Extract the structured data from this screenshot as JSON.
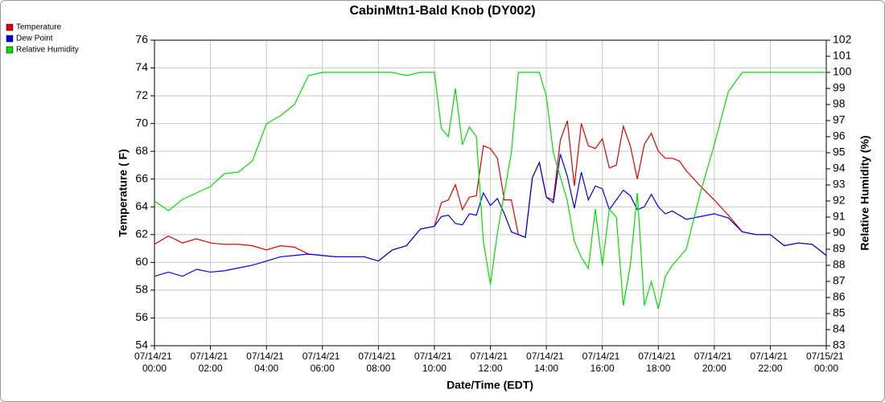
{
  "chart_data": {
    "type": "line",
    "title": "CabinMtn1-Bald Knob (DY002)",
    "x_label": "Date/Time (EDT)",
    "y_label": "Temperature ( F)",
    "y2_label": "Relative Humidity (%)",
    "grid": true,
    "legend": "top-left",
    "x": [
      "07/14/21 00:00",
      "07/14/21 00:30",
      "07/14/21 01:00",
      "07/14/21 01:30",
      "07/14/21 02:00",
      "07/14/21 02:30",
      "07/14/21 03:00",
      "07/14/21 03:30",
      "07/14/21 04:00",
      "07/14/21 04:30",
      "07/14/21 05:00",
      "07/14/21 05:30",
      "07/14/21 06:00",
      "07/14/21 06:30",
      "07/14/21 07:00",
      "07/14/21 07:30",
      "07/14/21 08:00",
      "07/14/21 08:30",
      "07/14/21 09:00",
      "07/14/21 09:30",
      "07/14/21 10:00",
      "07/14/21 10:15",
      "07/14/21 10:30",
      "07/14/21 10:45",
      "07/14/21 11:00",
      "07/14/21 11:15",
      "07/14/21 11:30",
      "07/14/21 11:45",
      "07/14/21 12:00",
      "07/14/21 12:15",
      "07/14/21 12:30",
      "07/14/21 12:45",
      "07/14/21 13:00",
      "07/14/21 13:15",
      "07/14/21 13:30",
      "07/14/21 13:45",
      "07/14/21 14:00",
      "07/14/21 14:15",
      "07/14/21 14:30",
      "07/14/21 14:45",
      "07/14/21 15:00",
      "07/14/21 15:15",
      "07/14/21 15:30",
      "07/14/21 15:45",
      "07/14/21 16:00",
      "07/14/21 16:15",
      "07/14/21 16:30",
      "07/14/21 16:45",
      "07/14/21 17:00",
      "07/14/21 17:15",
      "07/14/21 17:30",
      "07/14/21 17:45",
      "07/14/21 18:00",
      "07/14/21 18:15",
      "07/14/21 18:30",
      "07/14/21 18:45",
      "07/14/21 19:00",
      "07/14/21 19:30",
      "07/14/21 20:00",
      "07/14/21 20:30",
      "07/14/21 21:00",
      "07/14/21 21:30",
      "07/14/21 22:00",
      "07/14/21 22:30",
      "07/14/21 23:00",
      "07/14/21 23:30",
      "07/15/21 00:00"
    ],
    "xlim": [
      "07/14/21 00:00",
      "07/15/21 00:00"
    ],
    "xticks": [
      "07/14/21 00:00",
      "07/14/21 02:00",
      "07/14/21 04:00",
      "07/14/21 06:00",
      "07/14/21 08:00",
      "07/14/21 10:00",
      "07/14/21 12:00",
      "07/14/21 14:00",
      "07/14/21 16:00",
      "07/14/21 18:00",
      "07/14/21 20:00",
      "07/14/21 22:00",
      "07/15/21 00:00"
    ],
    "ylim": [
      54,
      76
    ],
    "yticks": [
      54,
      56,
      58,
      60,
      62,
      64,
      66,
      68,
      70,
      72,
      74,
      76
    ],
    "y2lim": [
      83,
      102
    ],
    "y2ticks": [
      83,
      84,
      85,
      86,
      87,
      88,
      89,
      90,
      91,
      92,
      93,
      94,
      95,
      96,
      97,
      98,
      99,
      100,
      101,
      102
    ],
    "series": [
      {
        "name": "Temperature",
        "color": "#e00000",
        "values": [
          61.3,
          61.9,
          61.4,
          61.7,
          61.4,
          61.3,
          61.3,
          61.2,
          60.9,
          61.2,
          61.1,
          60.6,
          60.5,
          60.4,
          60.4,
          60.4,
          60.1,
          60.9,
          61.2,
          62.4,
          62.6,
          64.3,
          64.5,
          65.6,
          63.8,
          64.7,
          64.8,
          68.4,
          68.2,
          67.5,
          64.5,
          64.5,
          62.0,
          61.8,
          66.1,
          67.2,
          64.7,
          64.5,
          68.8,
          70.2,
          65.5,
          70.0,
          68.4,
          68.2,
          68.9,
          66.8,
          67.0,
          69.8,
          68.4,
          66.0,
          68.5,
          69.3,
          68.0,
          67.5,
          67.5,
          67.3,
          66.6,
          65.5,
          64.5,
          63.4,
          62.2,
          62.0,
          62.0,
          61.2,
          61.4,
          61.3,
          60.5
        ]
      },
      {
        "name": "Dew Point",
        "color": "#0000e0",
        "values": [
          59.0,
          59.3,
          59.0,
          59.5,
          59.3,
          59.4,
          59.6,
          59.8,
          60.1,
          60.4,
          60.5,
          60.6,
          60.5,
          60.4,
          60.4,
          60.4,
          60.1,
          60.9,
          61.2,
          62.4,
          62.6,
          63.3,
          63.4,
          62.8,
          62.7,
          63.5,
          63.4,
          65.0,
          64.1,
          64.6,
          63.5,
          62.2,
          62.0,
          61.8,
          66.1,
          67.2,
          64.7,
          64.3,
          67.8,
          66.2,
          63.9,
          66.5,
          64.5,
          65.5,
          65.3,
          63.8,
          64.5,
          65.2,
          64.8,
          63.8,
          64.0,
          64.9,
          64.0,
          63.5,
          63.7,
          63.4,
          63.1,
          63.3,
          63.5,
          63.2,
          62.2,
          62.0,
          62.0,
          61.2,
          61.4,
          61.3,
          60.5
        ]
      },
      {
        "name": "Relative Humidity",
        "color": "#00e000",
        "axis": "y2",
        "values": [
          92.0,
          91.4,
          92.1,
          92.5,
          92.9,
          93.7,
          93.8,
          94.5,
          96.8,
          97.3,
          98.0,
          99.8,
          100,
          100,
          100,
          100,
          100,
          100,
          99.8,
          100,
          100,
          96.5,
          96.0,
          99.0,
          95.5,
          96.6,
          96.0,
          89.5,
          86.8,
          90.0,
          92.5,
          95.0,
          100,
          100,
          100,
          100,
          98.5,
          95.0,
          93.5,
          92.0,
          89.5,
          88.5,
          87.8,
          91.5,
          88.0,
          91.5,
          91.0,
          85.5,
          88.0,
          92.5,
          85.5,
          87.0,
          85.3,
          87.3,
          88.0,
          88.5,
          89.0,
          92.5,
          95.5,
          98.8,
          100,
          100,
          100,
          100,
          100,
          100,
          100
        ]
      }
    ]
  }
}
